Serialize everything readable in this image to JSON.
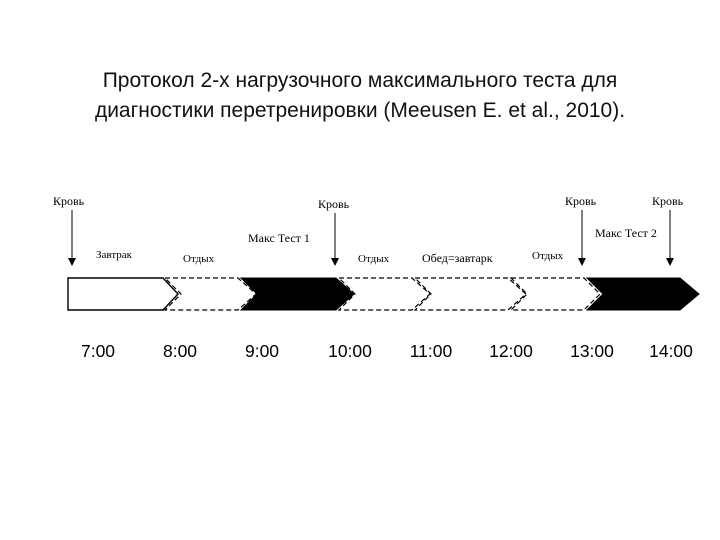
{
  "title": {
    "line1": "Протокол 2-х нагрузочного максимального теста для",
    "line2": "диагностики перетренировки (Meeusen E. et al., 2010)."
  },
  "diagram": {
    "blood_labels": [
      "Кровь",
      "Кровь",
      "Кровь",
      "Кровь"
    ],
    "test_labels": [
      "Макс Тест 1",
      "Макс Тест 2"
    ],
    "segment_labels": [
      "Завтрак",
      "Отдых",
      "Отдых",
      "Обед=завтарк",
      "Отдых"
    ],
    "times": [
      "7:00",
      "8:00",
      "9:00",
      "10:00",
      "11:00",
      "12:00",
      "13:00",
      "14:00"
    ]
  }
}
